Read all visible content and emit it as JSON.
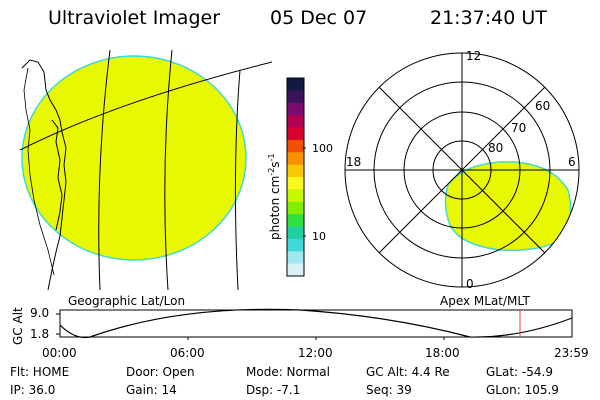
{
  "header": {
    "title": "Ultraviolet Imager",
    "date": "05 Dec 07",
    "time": "21:37:40 UT"
  },
  "colorbar": {
    "unit_main": "photon cm",
    "unit_sup1": "-2",
    "unit_mid": "s",
    "unit_sup2": "-1",
    "tick_high": "100",
    "tick_low": "10",
    "colors": [
      "#111a40",
      "#3a1458",
      "#7a0c70",
      "#b00050",
      "#d80030",
      "#f05000",
      "#f89000",
      "#f8c800",
      "#f8f820",
      "#c8f800",
      "#80f000",
      "#30e040",
      "#20d0a0",
      "#40d8d8",
      "#a0e8f0",
      "#d8f0f8"
    ]
  },
  "geo_panel": {
    "caption": "Geographic Lat/Lon",
    "fill_color": "#e8f800"
  },
  "polar_panel": {
    "caption": "Apex MLat/MLT",
    "mlt_top": "12",
    "mlt_left": "18",
    "mlt_right": "6",
    "mlt_bottom": "0",
    "lat_labels": [
      "60",
      "70",
      "80"
    ]
  },
  "orbit_plot": {
    "ylabel": "GC Alt",
    "y_max": "9.0",
    "y_min": "1.8",
    "x_ticks": [
      "00:00",
      "06:00",
      "12:00",
      "18:00",
      "23:59"
    ],
    "marker_color": "#e04040"
  },
  "status": {
    "flt": "Flt: HOME",
    "ip": "IP: 36.0",
    "door": "Door: Open",
    "gain": "Gain: 14",
    "mode": "Mode: Normal",
    "dsp": "Dsp:   -7.1",
    "gc_alt": "GC Alt: 4.4 Re",
    "seq": "Seq: 39",
    "glat": "GLat: -54.9",
    "glon": "GLon: 105.9"
  }
}
